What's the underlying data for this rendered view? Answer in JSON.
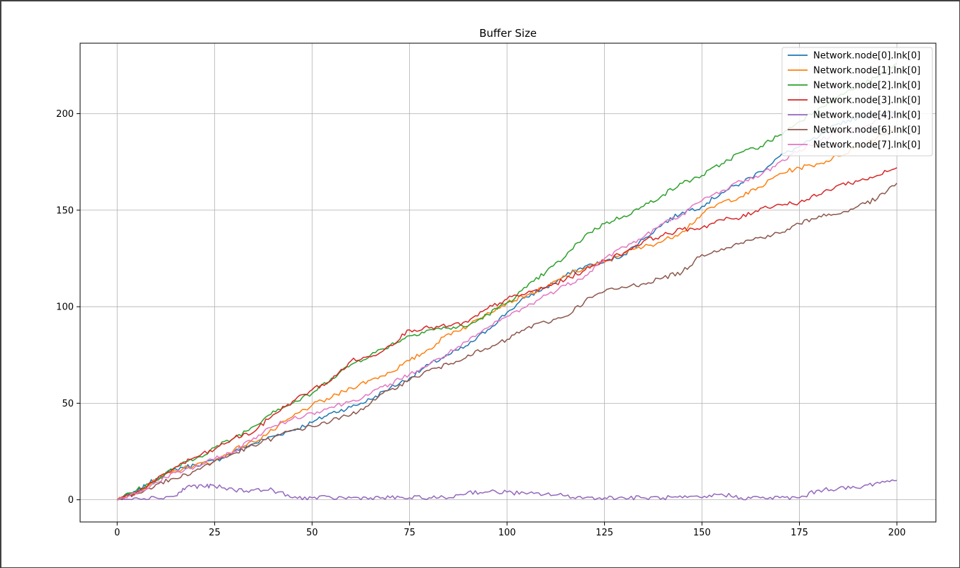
{
  "chart_data": {
    "type": "line",
    "title": "Buffer Size",
    "xlabel": "",
    "ylabel": "",
    "xlim": [
      -9.5,
      210
    ],
    "ylim": [
      -11.5,
      236.5
    ],
    "xticks": [
      0,
      25,
      50,
      75,
      100,
      125,
      150,
      175,
      200
    ],
    "yticks": [
      0,
      50,
      100,
      150,
      200
    ],
    "grid": true,
    "legend_position": "top-right",
    "series": [
      {
        "name": "Network.node[0].lnk[0]",
        "color": "#1f77b4",
        "x": [
          0,
          5,
          10,
          15,
          20,
          25,
          30,
          35,
          40,
          45,
          50,
          55,
          60,
          65,
          70,
          75,
          80,
          85,
          90,
          95,
          100,
          105,
          110,
          115,
          120,
          125,
          130,
          135,
          140,
          145,
          150,
          155,
          160,
          165,
          170,
          175,
          180,
          185,
          190,
          195,
          200
        ],
        "y": [
          0,
          4,
          11,
          16,
          18,
          20,
          25,
          29,
          33,
          36,
          40,
          45,
          48,
          52,
          58,
          63,
          70,
          75,
          80,
          88,
          97,
          105,
          110,
          116,
          121,
          123,
          127,
          135,
          143,
          149,
          152,
          159,
          164,
          170,
          178,
          183,
          188,
          195,
          198,
          200,
          200
        ]
      },
      {
        "name": "Network.node[1].lnk[0]",
        "color": "#ff7f0e",
        "x": [
          0,
          5,
          10,
          15,
          20,
          25,
          30,
          35,
          40,
          45,
          50,
          55,
          60,
          65,
          70,
          75,
          80,
          85,
          90,
          95,
          100,
          105,
          110,
          115,
          120,
          125,
          130,
          135,
          140,
          145,
          150,
          155,
          160,
          165,
          170,
          175,
          180,
          185,
          190,
          195,
          200
        ],
        "y": [
          0,
          4,
          10,
          15,
          18,
          20,
          26,
          30,
          36,
          43,
          49,
          53,
          58,
          62,
          66,
          72,
          78,
          86,
          90,
          97,
          102,
          106,
          110,
          116,
          120,
          123,
          128,
          131,
          134,
          139,
          148,
          154,
          157,
          162,
          169,
          172,
          174,
          178,
          183,
          188,
          193
        ]
      },
      {
        "name": "Network.node[2].lnk[0]",
        "color": "#2ca02c",
        "x": [
          0,
          5,
          10,
          15,
          20,
          25,
          30,
          35,
          40,
          45,
          50,
          55,
          60,
          65,
          70,
          75,
          80,
          85,
          90,
          95,
          100,
          105,
          110,
          115,
          120,
          125,
          130,
          135,
          140,
          145,
          150,
          155,
          160,
          165,
          170,
          175,
          180,
          185,
          190,
          195,
          200
        ],
        "y": [
          0,
          5,
          10,
          17,
          21,
          27,
          32,
          38,
          46,
          50,
          55,
          63,
          70,
          75,
          80,
          85,
          88,
          89,
          90,
          96,
          102,
          110,
          118,
          126,
          137,
          143,
          147,
          152,
          158,
          164,
          168,
          174,
          180,
          183,
          189,
          196,
          203,
          209,
          214,
          219,
          226
        ]
      },
      {
        "name": "Network.node[3].lnk[0]",
        "color": "#d62728",
        "x": [
          0,
          5,
          10,
          15,
          20,
          25,
          30,
          35,
          40,
          45,
          50,
          55,
          60,
          65,
          70,
          75,
          80,
          85,
          90,
          95,
          100,
          105,
          110,
          115,
          120,
          125,
          130,
          135,
          140,
          145,
          150,
          155,
          160,
          165,
          170,
          175,
          180,
          185,
          190,
          195,
          200
        ],
        "y": [
          0,
          4,
          10,
          17,
          22,
          26,
          32,
          35,
          44,
          51,
          57,
          62,
          72,
          74,
          80,
          88,
          89,
          90,
          92,
          99,
          104,
          107,
          110,
          114,
          119,
          124,
          128,
          134,
          137,
          140,
          141,
          145,
          146,
          151,
          153,
          154,
          158,
          163,
          165,
          168,
          172
        ]
      },
      {
        "name": "Network.node[4].lnk[0]",
        "color": "#9467bd",
        "x": [
          0,
          5,
          10,
          15,
          18,
          22,
          25,
          30,
          35,
          40,
          45,
          50,
          55,
          60,
          65,
          70,
          75,
          80,
          85,
          90,
          95,
          100,
          105,
          110,
          115,
          120,
          125,
          130,
          135,
          140,
          145,
          150,
          155,
          160,
          165,
          170,
          175,
          180,
          185,
          190,
          195,
          200
        ],
        "y": [
          0,
          1,
          1,
          2,
          7,
          7,
          7,
          5,
          5,
          5,
          1,
          1,
          1,
          1,
          1,
          1,
          1,
          1,
          1,
          4,
          4,
          4,
          3,
          3,
          2,
          1,
          1,
          1,
          1,
          1,
          1,
          1,
          3,
          1,
          1,
          1,
          1,
          5,
          6,
          6,
          9,
          10
        ]
      },
      {
        "name": "Network.node[6].lnk[0]",
        "color": "#8c564b",
        "x": [
          0,
          5,
          10,
          15,
          20,
          25,
          30,
          35,
          40,
          45,
          50,
          55,
          60,
          65,
          70,
          75,
          80,
          85,
          90,
          95,
          100,
          105,
          110,
          115,
          120,
          125,
          130,
          135,
          140,
          145,
          150,
          155,
          160,
          165,
          170,
          175,
          180,
          185,
          190,
          195,
          200
        ],
        "y": [
          0,
          3,
          8,
          11,
          15,
          20,
          24,
          28,
          32,
          36,
          38,
          41,
          44,
          50,
          57,
          62,
          67,
          70,
          75,
          78,
          83,
          89,
          92,
          95,
          103,
          108,
          110,
          112,
          115,
          118,
          127,
          130,
          133,
          136,
          138,
          143,
          147,
          148,
          152,
          156,
          164
        ]
      },
      {
        "name": "Network.node[7].lnk[0]",
        "color": "#e377c2",
        "x": [
          0,
          5,
          10,
          15,
          20,
          25,
          30,
          35,
          40,
          45,
          50,
          55,
          60,
          65,
          70,
          75,
          80,
          85,
          90,
          95,
          100,
          105,
          110,
          115,
          120,
          125,
          130,
          135,
          140,
          145,
          150,
          155,
          160,
          165,
          170,
          175,
          180,
          185,
          190,
          195,
          200
        ],
        "y": [
          0,
          3,
          9,
          14,
          17,
          21,
          25,
          32,
          38,
          42,
          45,
          48,
          51,
          55,
          60,
          65,
          70,
          76,
          82,
          89,
          95,
          100,
          106,
          111,
          116,
          125,
          131,
          136,
          143,
          148,
          155,
          160,
          165,
          168,
          175,
          181,
          186,
          190,
          192,
          197,
          200
        ]
      }
    ]
  }
}
